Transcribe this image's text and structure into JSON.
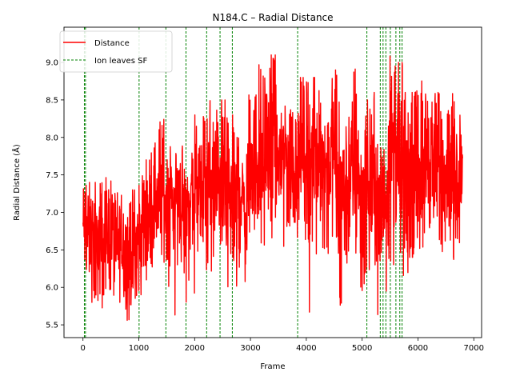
{
  "chart_data": {
    "type": "line",
    "title": "N184.C – Radial Distance",
    "xlabel": "Frame",
    "ylabel": "Radial Distance (Å)",
    "xlim": [
      -340,
      7140
    ],
    "ylim": [
      5.33,
      9.47
    ],
    "x_ticks": [
      0,
      1000,
      2000,
      3000,
      4000,
      5000,
      6000,
      7000
    ],
    "y_ticks": [
      5.5,
      6.0,
      6.5,
      7.0,
      7.5,
      8.0,
      8.5,
      9.0
    ],
    "x_tick_labels": [
      "0",
      "1000",
      "2000",
      "3000",
      "4000",
      "5000",
      "6000",
      "7000"
    ],
    "y_tick_labels": [
      "5.5",
      "6.0",
      "6.5",
      "7.0",
      "7.5",
      "8.0",
      "8.5",
      "9.0"
    ],
    "grid": false,
    "legend_position": "top-left",
    "legend": [
      "Distance",
      "Ion leaves SF"
    ],
    "colors": {
      "distance": "#ff0000",
      "event": "#008000",
      "axes": "#000000"
    },
    "series": [
      {
        "name": "Distance",
        "style": "solid",
        "x": [
          0,
          100,
          200,
          300,
          400,
          500,
          600,
          700,
          800,
          900,
          1000,
          1100,
          1200,
          1300,
          1400,
          1500,
          1600,
          1700,
          1800,
          1900,
          2000,
          2100,
          2200,
          2300,
          2400,
          2500,
          2600,
          2700,
          2800,
          2900,
          3000,
          3100,
          3200,
          3300,
          3400,
          3500,
          3600,
          3700,
          3800,
          3900,
          4000,
          4100,
          4200,
          4300,
          4400,
          4500,
          4600,
          4700,
          4800,
          4900,
          5000,
          5100,
          5200,
          5300,
          5400,
          5500,
          5600,
          5700,
          5800,
          5900,
          6000,
          6100,
          6200,
          6300,
          6400,
          6500,
          6600,
          6700,
          6800
        ],
        "center": [
          6.8,
          6.7,
          6.6,
          6.6,
          6.7,
          6.7,
          6.5,
          6.6,
          6.4,
          6.5,
          6.6,
          6.9,
          7.0,
          7.2,
          7.3,
          7.2,
          7.1,
          7.3,
          7.0,
          7.2,
          7.3,
          7.2,
          7.4,
          7.3,
          7.4,
          7.5,
          7.2,
          7.1,
          7.3,
          7.0,
          7.6,
          7.7,
          7.8,
          7.9,
          7.8,
          7.7,
          7.8,
          7.7,
          7.6,
          7.9,
          7.8,
          7.7,
          7.8,
          7.6,
          7.7,
          7.8,
          7.2,
          7.3,
          7.5,
          7.7,
          7.1,
          7.4,
          7.5,
          6.8,
          7.3,
          7.8,
          7.9,
          7.4,
          7.4,
          7.5,
          7.6,
          7.7,
          7.8,
          7.6,
          7.5,
          7.6,
          7.4,
          7.5,
          7.6
        ],
        "low": [
          6.1,
          6.0,
          5.8,
          5.6,
          5.9,
          5.7,
          5.7,
          5.6,
          5.5,
          5.6,
          5.8,
          6.1,
          6.2,
          6.4,
          6.3,
          5.9,
          5.5,
          6.2,
          5.8,
          6.0,
          5.9,
          5.6,
          6.1,
          5.7,
          6.2,
          6.5,
          5.9,
          6.0,
          5.9,
          5.5,
          6.6,
          6.7,
          6.5,
          6.9,
          6.4,
          6.6,
          6.5,
          6.8,
          6.4,
          6.9,
          6.6,
          5.6,
          6.3,
          6.5,
          6.4,
          6.6,
          5.7,
          6.1,
          6.3,
          6.4,
          5.9,
          6.1,
          6.3,
          5.6,
          5.8,
          6.3,
          6.2,
          5.5,
          6.1,
          6.4,
          6.1,
          6.4,
          6.5,
          6.4,
          6.2,
          6.6,
          6.3,
          6.5,
          6.5
        ],
        "high": [
          7.5,
          7.4,
          7.4,
          7.4,
          7.5,
          7.5,
          7.3,
          7.3,
          7.2,
          7.3,
          7.5,
          7.7,
          7.8,
          8.0,
          8.3,
          8.0,
          8.0,
          8.0,
          7.9,
          7.9,
          8.3,
          7.9,
          8.5,
          8.5,
          8.5,
          8.5,
          8.3,
          8.3,
          8.4,
          7.9,
          8.6,
          8.8,
          9.0,
          9.3,
          9.1,
          8.7,
          8.8,
          8.6,
          8.6,
          8.8,
          8.9,
          8.8,
          8.7,
          8.5,
          8.5,
          8.9,
          8.6,
          8.6,
          8.7,
          9.0,
          9.1,
          8.5,
          8.6,
          8.0,
          8.4,
          9.1,
          9.0,
          9.0,
          8.6,
          8.6,
          8.7,
          8.8,
          8.9,
          8.6,
          8.6,
          8.4,
          8.6,
          8.4,
          8.3
        ]
      },
      {
        "name": "Ion leaves SF",
        "style": "dashed",
        "x": [
          25,
          45,
          1005,
          1485,
          1845,
          2215,
          2455,
          2675,
          3845,
          5085,
          5325,
          5375,
          5425,
          5505,
          5605,
          5675,
          5715
        ]
      }
    ]
  }
}
